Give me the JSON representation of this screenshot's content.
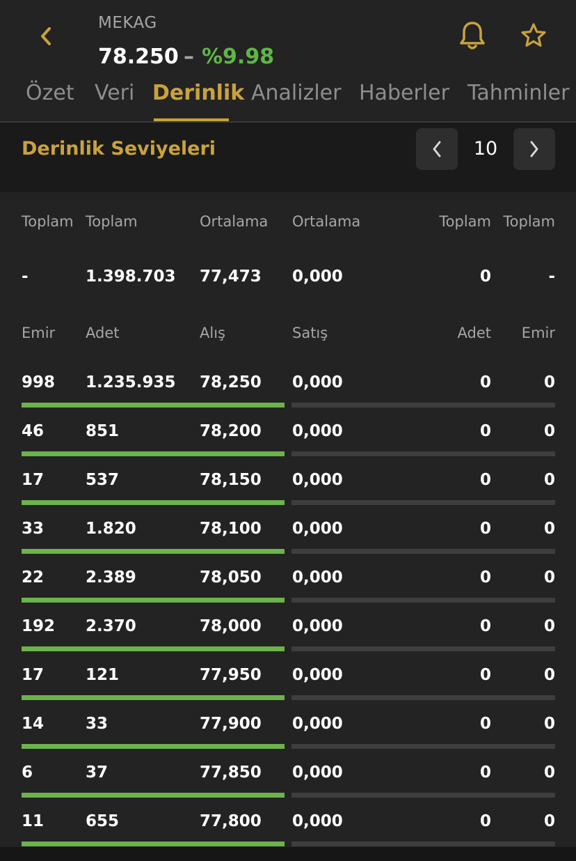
{
  "header": {
    "symbol": "MEKAG",
    "price": "78.250",
    "dash": "–",
    "change": "%9.98",
    "icons": {
      "back": "chevron-left-icon",
      "bell": "bell-icon",
      "star": "star-icon"
    }
  },
  "tabs": [
    {
      "label": "Özet",
      "active": false
    },
    {
      "label": "Veri",
      "active": false
    },
    {
      "label": "Derinlik",
      "active": true
    },
    {
      "label": "Analizler",
      "active": false
    },
    {
      "label": "Haberler",
      "active": false
    },
    {
      "label": "Tahminler",
      "active": false
    }
  ],
  "section": {
    "title": "Derinlik Seviyeleri",
    "level": "10",
    "icons": {
      "prev": "chevron-left-icon",
      "next": "chevron-right-icon"
    }
  },
  "summary": {
    "headers": [
      "Toplam",
      "Toplam",
      "Ortalama",
      "Ortalama",
      "Toplam",
      "Toplam"
    ],
    "values": [
      "-",
      "1.398.703",
      "77,473",
      "0,000",
      "0",
      "-"
    ]
  },
  "columns": [
    "Emir",
    "Adet",
    "Alış",
    "Satış",
    "Adet",
    "Emir"
  ],
  "rows": [
    [
      "998",
      "1.235.935",
      "78,250",
      "0,000",
      "0",
      "0"
    ],
    [
      "46",
      "851",
      "78,200",
      "0,000",
      "0",
      "0"
    ],
    [
      "17",
      "537",
      "78,150",
      "0,000",
      "0",
      "0"
    ],
    [
      "33",
      "1.820",
      "78,100",
      "0,000",
      "0",
      "0"
    ],
    [
      "22",
      "2.389",
      "78,050",
      "0,000",
      "0",
      "0"
    ],
    [
      "192",
      "2.370",
      "78,000",
      "0,000",
      "0",
      "0"
    ],
    [
      "17",
      "121",
      "77,950",
      "0,000",
      "0",
      "0"
    ],
    [
      "14",
      "33",
      "77,900",
      "0,000",
      "0",
      "0"
    ],
    [
      "6",
      "37",
      "77,850",
      "0,000",
      "0",
      "0"
    ],
    [
      "11",
      "655",
      "77,800",
      "0,000",
      "0",
      "0"
    ]
  ],
  "colors": {
    "accent": "#c9a23f",
    "positive": "#5fb645",
    "buy_bar": "#6cb34b",
    "sell_bar": "#3e3e3e",
    "background": "#232323"
  }
}
